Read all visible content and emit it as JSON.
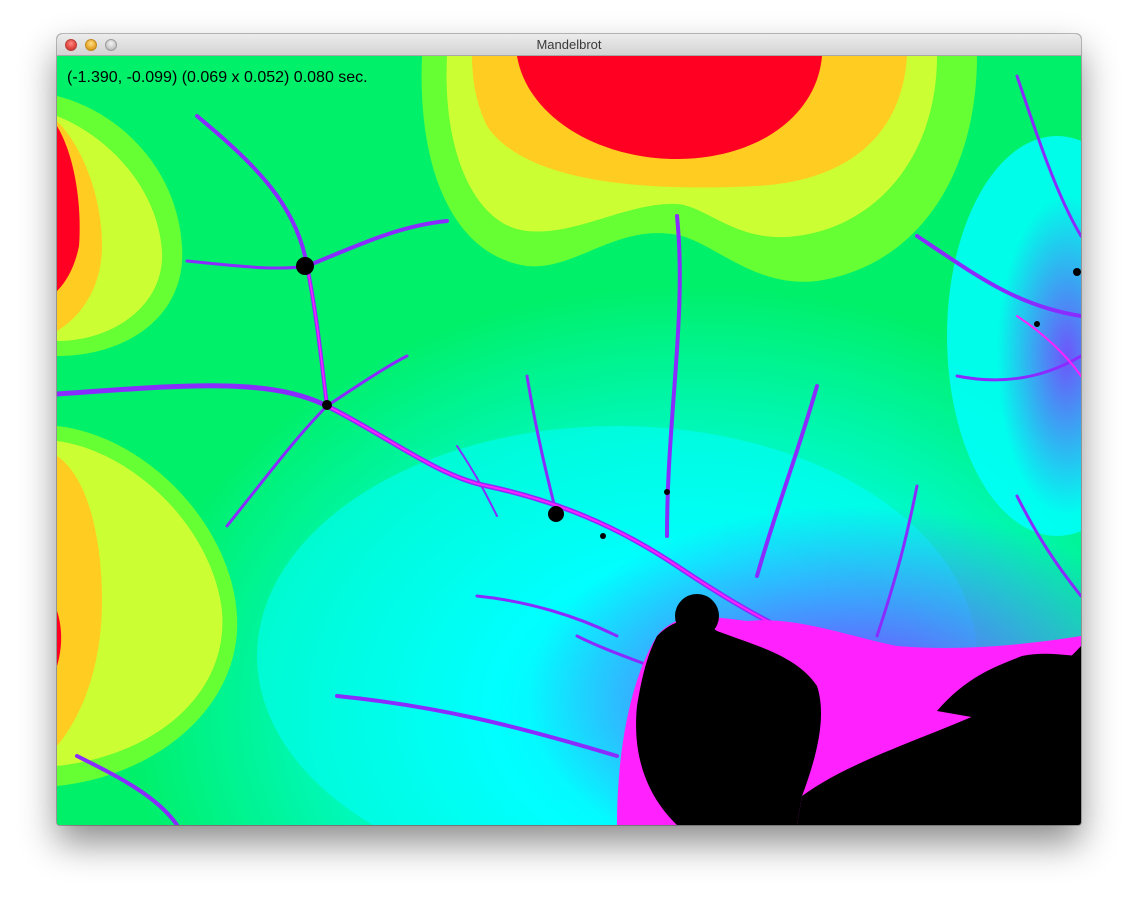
{
  "window": {
    "title": "Mandelbrot"
  },
  "readout": {
    "text": "(-1.390, -0.099) (0.069 x 0.052) 0.080 sec."
  },
  "palette": {
    "inside": "#000000",
    "red": "#ff0022",
    "orange": "#ffcc22",
    "yellow_green": "#ccff33",
    "light_green": "#66ff33",
    "green": "#00f06a",
    "cyan": "#00ffff",
    "sky_blue": "#33bbff",
    "violet": "#8a2bff",
    "magenta": "#ff22ff"
  },
  "icons": {
    "close": "close-button-icon",
    "minimize": "minimize-button-icon",
    "zoom": "zoom-button-icon"
  }
}
